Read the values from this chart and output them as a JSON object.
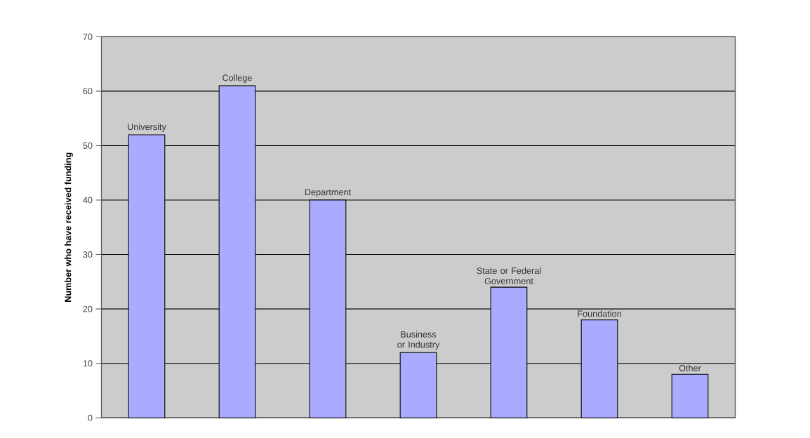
{
  "chart_data": {
    "type": "bar",
    "ylabel": "Number who have received funding",
    "categories": [
      "University",
      "College",
      "Department",
      "Business or Industry",
      "State or Federal Government",
      "Foundation",
      "Other"
    ],
    "values": [
      52,
      61,
      40,
      12,
      24,
      18,
      8
    ],
    "color": "#aaaaff",
    "ylim": [
      0,
      70
    ],
    "yticks": [
      0,
      10,
      20,
      30,
      40,
      50,
      60,
      70
    ],
    "grid": "y"
  }
}
